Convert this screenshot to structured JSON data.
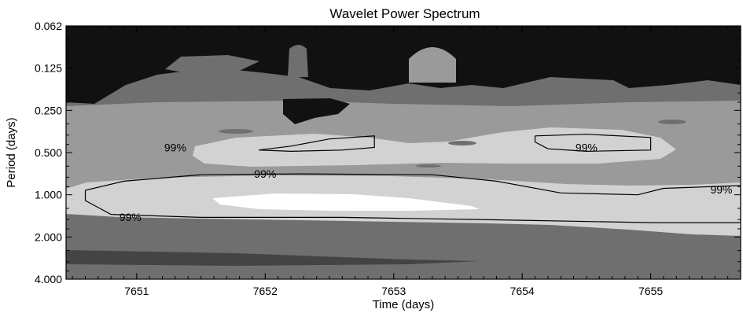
{
  "chart_data": {
    "type": "heatmap",
    "title": "Wavelet Power Spectrum",
    "xlabel": "Time (days)",
    "ylabel": "Period (days)",
    "xlim": [
      7650.45,
      7655.7
    ],
    "ylim": [
      0.0625,
      4.0
    ],
    "y_scale": "log2",
    "y_reversed": true,
    "x_ticks": [
      7651,
      7652,
      7653,
      7654,
      7655
    ],
    "y_ticks": [
      0.0625,
      0.125,
      0.25,
      0.5,
      1.0,
      2.0,
      4.0
    ],
    "y_tick_labels": [
      "0.062",
      "0.125",
      "0.250",
      "0.500",
      "1.000",
      "2.000",
      "4.000"
    ],
    "colors": {
      "level_0": "#111111",
      "level_1": "#444444",
      "level_2": "#6f6f6f",
      "level_3": "#9a9a9a",
      "level_4": "#d2d2d2",
      "level_5": "#ffffff",
      "contour": "#000000"
    },
    "significance_contours": [
      {
        "label": "99%",
        "points": [
          [
            7651.95,
            0.48
          ],
          [
            7652.2,
            0.45
          ],
          [
            7652.5,
            0.4
          ],
          [
            7652.85,
            0.38
          ],
          [
            7652.85,
            0.46
          ],
          [
            7652.6,
            0.48
          ],
          [
            7652.2,
            0.49
          ],
          [
            7651.95,
            0.48
          ]
        ]
      },
      {
        "label": "99%",
        "points": [
          [
            7654.1,
            0.38
          ],
          [
            7654.5,
            0.37
          ],
          [
            7655.0,
            0.39
          ],
          [
            7655.0,
            0.48
          ],
          [
            7654.5,
            0.49
          ],
          [
            7654.2,
            0.47
          ],
          [
            7654.1,
            0.42
          ],
          [
            7654.1,
            0.38
          ]
        ]
      },
      {
        "label": "99%",
        "points": [
          [
            7650.6,
            0.93
          ],
          [
            7650.9,
            0.8
          ],
          [
            7651.5,
            0.72
          ],
          [
            7652.3,
            0.71
          ],
          [
            7653.3,
            0.72
          ],
          [
            7653.8,
            0.8
          ],
          [
            7654.3,
            0.97
          ],
          [
            7654.9,
            1.0
          ],
          [
            7655.1,
            0.9
          ],
          [
            7655.7,
            0.86
          ],
          [
            7655.7,
            1.58
          ],
          [
            7655.0,
            1.58
          ],
          [
            7654.0,
            1.52
          ],
          [
            7652.6,
            1.45
          ],
          [
            7651.5,
            1.45
          ],
          [
            7650.8,
            1.38
          ],
          [
            7650.6,
            1.1
          ],
          [
            7650.6,
            0.93
          ]
        ]
      }
    ]
  }
}
